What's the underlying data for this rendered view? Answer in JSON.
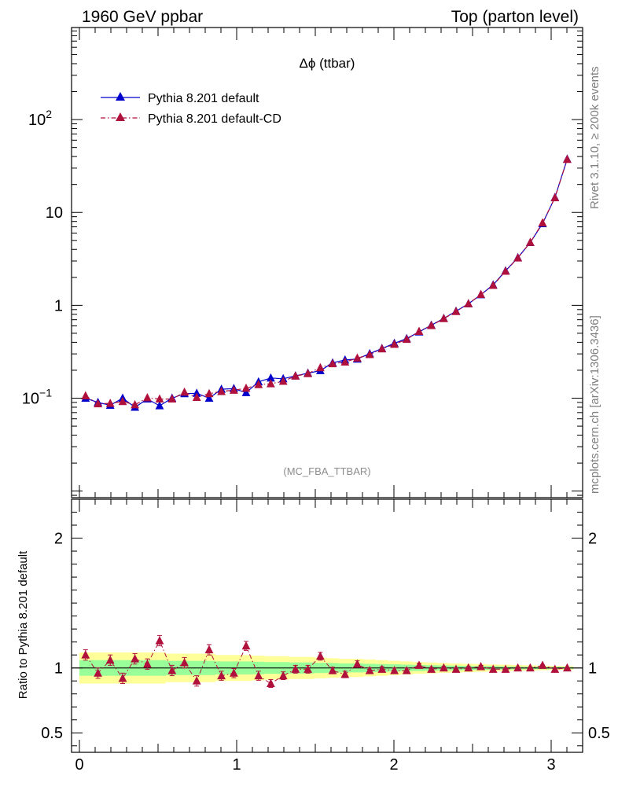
{
  "header": {
    "left": "1960 GeV ppbar",
    "right": "Top (parton level)"
  },
  "side_text": {
    "rivet": "Rivet 3.1.10, ≥ 200k events",
    "mcplots": "mcplots.cern.ch [arXiv:1306.3436]"
  },
  "chart_data": [
    {
      "type": "line",
      "panel": "main",
      "title": "Δϕ (ttbar)",
      "watermark": "(MC_FBA_TTBAR)",
      "xlabel": "",
      "ylabel": "",
      "xlim": [
        -0.05,
        3.2
      ],
      "ylim": [
        0.0085,
        980
      ],
      "yscale": "log",
      "legend_position": "top-left",
      "ytick_labels": [
        {
          "value": 0.1,
          "label": "10",
          "sup": "−1"
        },
        {
          "value": 1,
          "label": "1",
          "sup": ""
        },
        {
          "value": 10,
          "label": "10",
          "sup": ""
        },
        {
          "value": 100,
          "label": "10",
          "sup": "2"
        }
      ],
      "xtick_labels": [
        "0",
        "1",
        "2",
        "3"
      ],
      "x": [
        0.039,
        0.118,
        0.196,
        0.275,
        0.353,
        0.432,
        0.51,
        0.589,
        0.668,
        0.746,
        0.825,
        0.903,
        0.982,
        1.06,
        1.139,
        1.217,
        1.296,
        1.374,
        1.453,
        1.532,
        1.61,
        1.689,
        1.767,
        1.846,
        1.924,
        2.003,
        2.081,
        2.16,
        2.238,
        2.317,
        2.395,
        2.474,
        2.553,
        2.631,
        2.71,
        2.788,
        2.867,
        2.945,
        3.024,
        3.102
      ],
      "series": [
        {
          "name": "Pythia 8.201 default",
          "color": "#0000cc",
          "line_style": "solid",
          "values": [
            0.1,
            0.09,
            0.084,
            0.1,
            0.08,
            0.098,
            0.083,
            0.1,
            0.112,
            0.113,
            0.1,
            0.125,
            0.127,
            0.115,
            0.15,
            0.165,
            0.162,
            0.174,
            0.186,
            0.198,
            0.24,
            0.258,
            0.264,
            0.302,
            0.343,
            0.39,
            0.438,
            0.517,
            0.612,
            0.724,
            0.864,
            1.04,
            1.3,
            1.66,
            2.35,
            3.26,
            4.74,
            7.58,
            14.5,
            37.5
          ]
        },
        {
          "name": "Pythia 8.201 default-CD",
          "color": "#b0103c",
          "line_style": "dashdot",
          "values": [
            0.106,
            0.087,
            0.088,
            0.092,
            0.085,
            0.101,
            0.098,
            0.098,
            0.116,
            0.102,
            0.112,
            0.118,
            0.122,
            0.128,
            0.14,
            0.143,
            0.152,
            0.173,
            0.184,
            0.213,
            0.235,
            0.245,
            0.27,
            0.295,
            0.34,
            0.38,
            0.43,
            0.525,
            0.605,
            0.719,
            0.858,
            1.04,
            1.31,
            1.64,
            2.33,
            3.24,
            4.76,
            7.72,
            14.4,
            37.3
          ]
        }
      ]
    },
    {
      "type": "line",
      "panel": "ratio",
      "xlabel": "",
      "ylabel": "Ratio to Pythia 8.201 default",
      "xlim": [
        -0.05,
        3.2
      ],
      "ylim": [
        0.35,
        2.3
      ],
      "ytick_labels": [
        "0.5",
        "1",
        "2"
      ],
      "xtick_labels": [
        "0",
        "1",
        "2",
        "3"
      ],
      "reference_line": 1,
      "x": [
        0.039,
        0.118,
        0.196,
        0.275,
        0.353,
        0.432,
        0.51,
        0.589,
        0.668,
        0.746,
        0.825,
        0.903,
        0.982,
        1.06,
        1.139,
        1.217,
        1.296,
        1.374,
        1.453,
        1.532,
        1.61,
        1.689,
        1.767,
        1.846,
        1.924,
        2.003,
        2.081,
        2.16,
        2.238,
        2.317,
        2.395,
        2.474,
        2.553,
        2.631,
        2.71,
        2.788,
        2.867,
        2.945,
        3.024,
        3.102
      ],
      "bands": [
        {
          "color": "#ffff99",
          "half_width": [
            0.12,
            0.12,
            0.12,
            0.12,
            0.12,
            0.12,
            0.12,
            0.11,
            0.11,
            0.11,
            0.11,
            0.1,
            0.1,
            0.1,
            0.095,
            0.09,
            0.09,
            0.085,
            0.085,
            0.08,
            0.075,
            0.07,
            0.07,
            0.065,
            0.06,
            0.055,
            0.05,
            0.045,
            0.042,
            0.038,
            0.035,
            0.032,
            0.03,
            0.027,
            0.025,
            0.022,
            0.02,
            0.018,
            0.016,
            0.014
          ]
        },
        {
          "color": "#99ff99",
          "half_width": [
            0.06,
            0.06,
            0.06,
            0.06,
            0.06,
            0.06,
            0.06,
            0.055,
            0.055,
            0.055,
            0.055,
            0.05,
            0.05,
            0.05,
            0.048,
            0.045,
            0.045,
            0.043,
            0.043,
            0.04,
            0.038,
            0.035,
            0.035,
            0.032,
            0.03,
            0.028,
            0.025,
            0.023,
            0.021,
            0.019,
            0.018,
            0.016,
            0.015,
            0.014,
            0.012,
            0.011,
            0.01,
            0.009,
            0.008,
            0.007
          ]
        }
      ],
      "series": [
        {
          "name": "Pythia 8.201 default-CD",
          "color": "#b0103c",
          "values": [
            1.1,
            0.96,
            1.06,
            0.92,
            1.07,
            1.03,
            1.21,
            0.98,
            1.04,
            0.9,
            1.14,
            0.94,
            0.96,
            1.17,
            0.94,
            0.88,
            0.94,
            0.99,
            0.99,
            1.09,
            0.98,
            0.95,
            1.03,
            0.98,
            0.99,
            0.98,
            0.98,
            1.02,
            0.99,
            1.0,
            0.99,
            1.0,
            1.01,
            0.99,
            0.99,
            1.0,
            1.0,
            1.02,
            0.99,
            1.0
          ],
          "errors": [
            0.04,
            0.04,
            0.04,
            0.04,
            0.04,
            0.04,
            0.04,
            0.04,
            0.04,
            0.04,
            0.04,
            0.035,
            0.035,
            0.035,
            0.035,
            0.03,
            0.03,
            0.03,
            0.03,
            0.03,
            0.025,
            0.025,
            0.025,
            0.022,
            0.02,
            0.02,
            0.018,
            0.016,
            0.014,
            0.012,
            0.011,
            0.01,
            0.009,
            0.008,
            0.007,
            0.006,
            0.005,
            0.004,
            0.004,
            0.003
          ]
        }
      ]
    }
  ]
}
